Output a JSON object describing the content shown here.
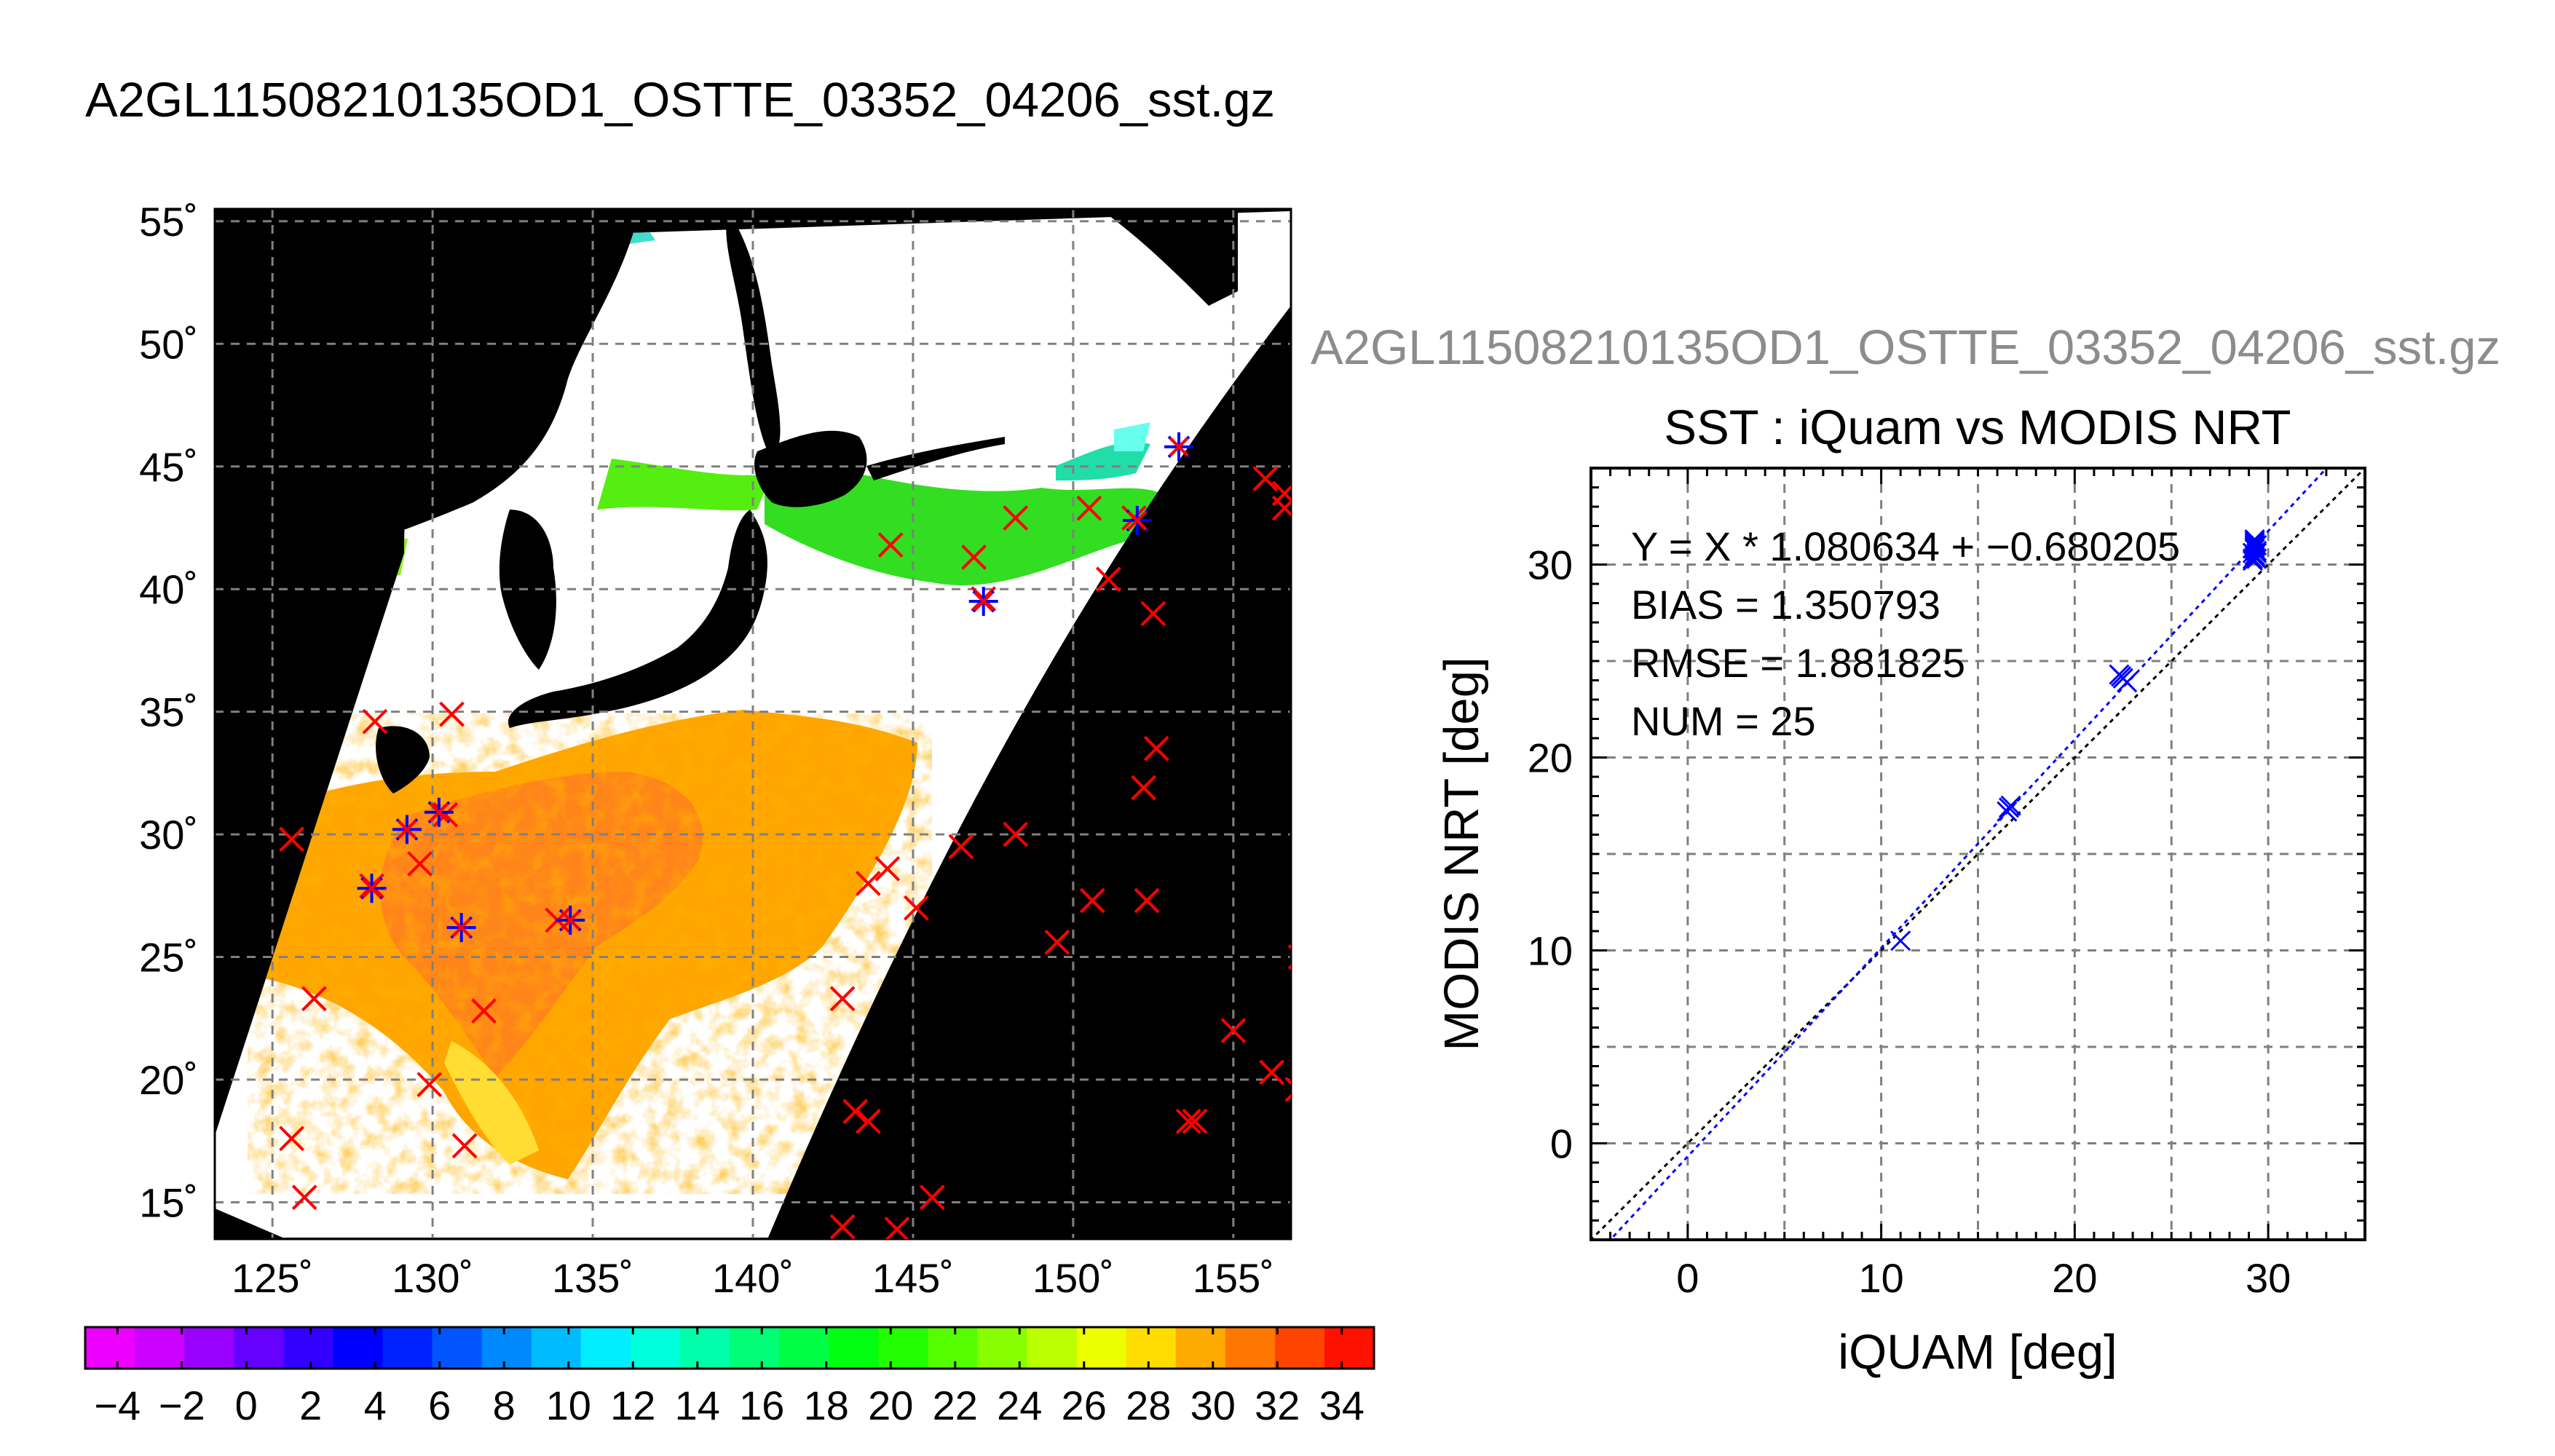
{
  "page": {
    "main_title": "A2GL11508210135OD1_OSTTE_03352_04206_sst.gz",
    "right_title": "A2GL11508210135OD1_OSTTE_03352_04206_sst.gz"
  },
  "colors": {
    "land": "#000000",
    "no_data": "#ffffff",
    "matchup_red": "#ff0000",
    "matchup_blue": "#0000ff",
    "grid": "#808080",
    "right_title": "#8c8c8c"
  },
  "map": {
    "lon_ticks": [
      "125˚",
      "130˚",
      "135˚",
      "140˚",
      "145˚",
      "150˚",
      "155˚"
    ],
    "lat_ticks": [
      "55˚",
      "50˚",
      "45˚",
      "40˚",
      "35˚",
      "30˚",
      "25˚",
      "20˚",
      "15˚"
    ],
    "lon_range": [
      123.2,
      156.8
    ],
    "lat_range": [
      13.5,
      55.5
    ],
    "red_markers": [
      [
        125.6,
        29.8
      ],
      [
        126.3,
        23.3
      ],
      [
        125.6,
        17.6
      ],
      [
        126.0,
        15.2
      ],
      [
        128.1,
        27.9
      ],
      [
        129.6,
        28.8
      ],
      [
        130.4,
        30.8
      ],
      [
        129.9,
        19.8
      ],
      [
        131.0,
        17.3
      ],
      [
        131.6,
        22.8
      ],
      [
        133.9,
        26.5
      ],
      [
        130.6,
        34.9
      ],
      [
        128.2,
        34.6
      ],
      [
        142.8,
        23.3
      ],
      [
        143.2,
        18.7
      ],
      [
        143.6,
        18.3
      ],
      [
        142.8,
        14.0
      ],
      [
        144.5,
        13.9
      ],
      [
        145.6,
        15.2
      ],
      [
        143.6,
        28.0
      ],
      [
        144.2,
        28.6
      ],
      [
        145.1,
        27.0
      ],
      [
        146.5,
        29.5
      ],
      [
        148.2,
        30.0
      ],
      [
        149.5,
        25.6
      ],
      [
        150.6,
        27.3
      ],
      [
        152.3,
        27.3
      ],
      [
        152.2,
        31.9
      ],
      [
        152.6,
        33.5
      ],
      [
        152.5,
        39.0
      ],
      [
        151.1,
        40.4
      ],
      [
        150.5,
        43.3
      ],
      [
        148.2,
        42.9
      ],
      [
        146.9,
        41.3
      ],
      [
        144.3,
        41.8
      ],
      [
        147.2,
        39.6
      ],
      [
        151.9,
        42.9
      ],
      [
        155.0,
        22.0
      ],
      [
        156.2,
        20.3
      ],
      [
        157.0,
        19.6
      ],
      [
        157.1,
        25.0
      ],
      [
        153.8,
        18.3
      ],
      [
        153.6,
        18.3
      ],
      [
        156.0,
        44.5
      ],
      [
        156.6,
        43.9
      ],
      [
        156.6,
        43.3
      ]
    ],
    "blue_markers": [
      [
        128.1,
        27.8
      ],
      [
        129.2,
        30.2
      ],
      [
        130.2,
        30.9
      ],
      [
        130.9,
        26.2
      ],
      [
        134.3,
        26.5
      ],
      [
        147.2,
        39.5
      ],
      [
        152.0,
        42.8
      ],
      [
        153.3,
        45.8
      ]
    ]
  },
  "colorbar": {
    "tick_labels": [
      "−4",
      "−2",
      "0",
      "2",
      "4",
      "6",
      "8",
      "10",
      "12",
      "14",
      "16",
      "18",
      "20",
      "22",
      "24",
      "26",
      "28",
      "30",
      "32",
      "34"
    ],
    "min": -5,
    "max": 35,
    "colors": [
      "#ee00ff",
      "#cc00ff",
      "#9900ff",
      "#6600ff",
      "#3300ff",
      "#0000ff",
      "#0022ff",
      "#0055ff",
      "#0088ff",
      "#00bbff",
      "#00eeff",
      "#00ffdd",
      "#00ffaa",
      "#00ff77",
      "#00ff44",
      "#00ff11",
      "#22ff00",
      "#55ff00",
      "#88ff00",
      "#bbff00",
      "#eeff00",
      "#ffdd00",
      "#ffaa00",
      "#ff7700",
      "#ff4400",
      "#ff1100"
    ]
  },
  "chart_data": {
    "type": "scatter",
    "title": "SST : iQuam vs MODIS NRT",
    "xlabel": "iQUAM [deg]",
    "ylabel": "MODIS NRT [deg]",
    "xlim": [
      -5,
      35
    ],
    "ylim": [
      -5,
      35
    ],
    "x_ticks": [
      "0",
      "10",
      "20",
      "30"
    ],
    "y_ticks": [
      "0",
      "10",
      "20",
      "30"
    ],
    "grid": true,
    "annotations": [
      "Y = X * 1.080634 + −0.680205",
      "BIAS = 1.350793",
      "RMSE = 1.881825",
      "NUM = 25"
    ],
    "fit": {
      "slope": 1.080634,
      "intercept": -0.680205
    },
    "points": {
      "x": [
        11.0,
        16.5,
        16.7,
        16.6,
        22.3,
        22.5,
        22.7,
        22.4,
        29.3,
        29.3,
        29.4,
        29.3,
        29.2,
        29.3,
        29.4,
        29.3,
        29.3,
        29.2,
        29.4,
        29.3,
        29.3,
        29.3,
        29.2,
        29.4,
        29.3
      ],
      "y": [
        10.5,
        17.2,
        17.5,
        17.4,
        24.3,
        24.1,
        23.9,
        24.2,
        31.3,
        30.9,
        30.6,
        30.4,
        30.3,
        30.8,
        31.0,
        30.5,
        31.1,
        30.2,
        30.7,
        30.9,
        31.2,
        30.4,
        30.6,
        30.3,
        31.0
      ]
    }
  }
}
